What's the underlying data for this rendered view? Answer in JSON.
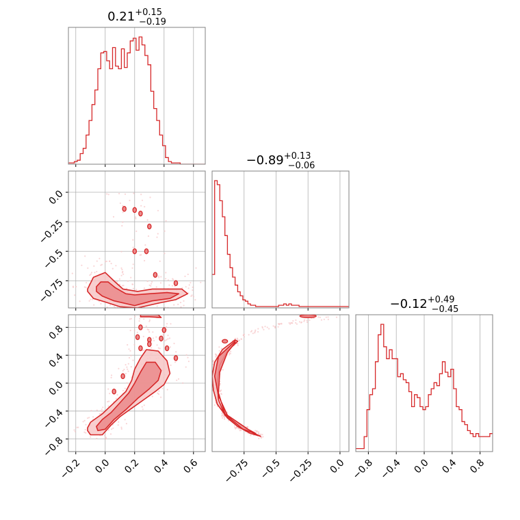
{
  "figure_type": "corner plot",
  "colors": {
    "main": "#d62728",
    "fill_light": "#f7c5c6",
    "fill_mid": "#eb8a8b",
    "grid": "#b0b0b0",
    "frame": "#808080"
  },
  "chart_data": [
    {
      "type": "histogram",
      "panel": "diag-0",
      "title": {
        "value": "0.21",
        "plus": "+0.15",
        "minus": "−0.19"
      },
      "xlim": [
        -0.25,
        0.68
      ],
      "xticks": [
        -0.2,
        0.0,
        0.2,
        0.4,
        0.6
      ],
      "bin_edges_start": -0.25,
      "bin_width": 0.02,
      "counts": [
        1,
        1,
        2,
        3,
        8,
        12,
        22,
        33,
        45,
        56,
        72,
        84,
        85,
        78,
        72,
        88,
        74,
        72,
        87,
        73,
        84,
        93,
        95,
        86,
        96,
        90,
        82,
        75,
        55,
        42,
        33,
        22,
        14,
        5,
        2,
        1,
        1,
        1,
        0,
        0,
        0,
        0,
        0,
        0,
        0,
        0,
        0,
        0,
        0,
        0
      ]
    },
    {
      "type": "histogram",
      "panel": "diag-1",
      "title": {
        "value": "−0.89",
        "plus": "+0.13",
        "minus": "−0.06"
      },
      "xlim": [
        -1.0,
        0.07
      ],
      "xticks": [
        -0.75,
        -0.5,
        -0.25,
        0.0
      ],
      "bin_edges_start": -1.0,
      "bin_width": 0.02,
      "counts": [
        25,
        95,
        92,
        80,
        68,
        54,
        40,
        30,
        23,
        17,
        12,
        9,
        6,
        5,
        3,
        2,
        2,
        1,
        1,
        1,
        1,
        1,
        1,
        1,
        1,
        1,
        2,
        2,
        3,
        2,
        3,
        2,
        2,
        2,
        1,
        1,
        1,
        1,
        1,
        1,
        1,
        1,
        1,
        1,
        1,
        1,
        1,
        1,
        1,
        1,
        1,
        1,
        1,
        1
      ]
    },
    {
      "type": "histogram",
      "panel": "diag-2",
      "title": {
        "value": "−0.12",
        "plus": "+0.49",
        "minus": "−0.45"
      },
      "xlim": [
        -0.98,
        0.98
      ],
      "xticks": [
        -0.8,
        -0.4,
        0.0,
        0.4,
        0.8
      ],
      "bin_edges_start": -0.98,
      "bin_width": 0.04,
      "counts": [
        2,
        2,
        2,
        10,
        28,
        38,
        42,
        60,
        78,
        85,
        70,
        62,
        68,
        62,
        62,
        50,
        52,
        48,
        46,
        40,
        30,
        38,
        36,
        30,
        28,
        30,
        38,
        42,
        46,
        44,
        52,
        60,
        53,
        50,
        55,
        42,
        30,
        28,
        20,
        18,
        14,
        12,
        10,
        12,
        10,
        10,
        10,
        10,
        12,
        12
      ]
    },
    {
      "type": "scatter-density",
      "panel": "2d-1-0",
      "xlim": [
        -0.25,
        0.68
      ],
      "ylim": [
        -0.98,
        0.18
      ],
      "yticks": [
        0.0,
        -0.25,
        -0.5,
        -0.75
      ],
      "contour_polylines": [
        [
          [
            -0.12,
            -0.82
          ],
          [
            -0.08,
            -0.72
          ],
          [
            0.0,
            -0.68
          ],
          [
            0.05,
            -0.74
          ],
          [
            0.12,
            -0.82
          ],
          [
            0.22,
            -0.84
          ],
          [
            0.32,
            -0.82
          ],
          [
            0.44,
            -0.82
          ],
          [
            0.52,
            -0.82
          ],
          [
            0.56,
            -0.86
          ],
          [
            0.48,
            -0.91
          ],
          [
            0.36,
            -0.94
          ],
          [
            0.22,
            -0.98
          ],
          [
            0.1,
            -0.97
          ],
          [
            0.0,
            -0.93
          ],
          [
            -0.08,
            -0.9
          ],
          [
            -0.12,
            -0.84
          ]
        ],
        [
          [
            -0.06,
            -0.8
          ],
          [
            -0.03,
            -0.76
          ],
          [
            0.02,
            -0.76
          ],
          [
            0.07,
            -0.81
          ],
          [
            0.14,
            -0.86
          ],
          [
            0.2,
            -0.87
          ],
          [
            0.3,
            -0.86
          ],
          [
            0.42,
            -0.85
          ],
          [
            0.5,
            -0.86
          ],
          [
            0.44,
            -0.9
          ],
          [
            0.32,
            -0.92
          ],
          [
            0.2,
            -0.96
          ],
          [
            0.06,
            -0.92
          ],
          [
            -0.02,
            -0.88
          ],
          [
            -0.06,
            -0.84
          ]
        ]
      ],
      "islands": [
        [
          0.13,
          -0.14
        ],
        [
          0.2,
          -0.15
        ],
        [
          0.24,
          -0.18
        ],
        [
          0.3,
          -0.29
        ],
        [
          0.2,
          -0.5
        ],
        [
          0.28,
          -0.5
        ],
        [
          0.34,
          -0.7
        ],
        [
          0.48,
          -0.77
        ]
      ]
    },
    {
      "type": "scatter-density",
      "panel": "2d-2-0",
      "xlim": [
        -0.25,
        0.68
      ],
      "ylim": [
        -0.98,
        0.98
      ],
      "xticks": [
        -0.2,
        0.0,
        0.2,
        0.4,
        0.6
      ],
      "yticks": [
        0.8,
        0.4,
        0.0,
        -0.4,
        -0.8
      ],
      "contour_polylines": [
        [
          [
            -0.12,
            -0.64
          ],
          [
            -0.1,
            -0.56
          ],
          [
            -0.02,
            -0.44
          ],
          [
            0.04,
            -0.32
          ],
          [
            0.1,
            -0.2
          ],
          [
            0.14,
            -0.12
          ],
          [
            0.18,
            0.04
          ],
          [
            0.2,
            0.2
          ],
          [
            0.24,
            0.36
          ],
          [
            0.28,
            0.48
          ],
          [
            0.36,
            0.46
          ],
          [
            0.42,
            0.32
          ],
          [
            0.44,
            0.14
          ],
          [
            0.4,
            -0.02
          ],
          [
            0.34,
            -0.12
          ],
          [
            0.26,
            -0.24
          ],
          [
            0.18,
            -0.36
          ],
          [
            0.1,
            -0.48
          ],
          [
            0.04,
            -0.6
          ],
          [
            -0.02,
            -0.74
          ],
          [
            -0.1,
            -0.74
          ],
          [
            -0.12,
            -0.68
          ]
        ],
        [
          [
            -0.06,
            -0.62
          ],
          [
            -0.02,
            -0.52
          ],
          [
            0.04,
            -0.42
          ],
          [
            0.1,
            -0.28
          ],
          [
            0.16,
            -0.14
          ],
          [
            0.2,
            0.0
          ],
          [
            0.24,
            0.16
          ],
          [
            0.28,
            0.3
          ],
          [
            0.34,
            0.3
          ],
          [
            0.38,
            0.18
          ],
          [
            0.36,
            0.04
          ],
          [
            0.3,
            -0.08
          ],
          [
            0.22,
            -0.22
          ],
          [
            0.14,
            -0.38
          ],
          [
            0.06,
            -0.52
          ],
          [
            0.0,
            -0.66
          ],
          [
            -0.05,
            -0.68
          ]
        ],
        [
          [
            0.24,
            0.95
          ],
          [
            0.3,
            0.95
          ],
          [
            0.38,
            0.94
          ],
          [
            0.36,
            0.98
          ],
          [
            0.24,
            0.99
          ]
        ]
      ],
      "islands": [
        [
          0.22,
          0.66
        ],
        [
          0.3,
          0.62
        ],
        [
          0.38,
          0.64
        ],
        [
          0.4,
          0.76
        ],
        [
          0.24,
          0.8
        ],
        [
          0.42,
          0.5
        ],
        [
          0.48,
          0.36
        ],
        [
          0.12,
          0.1
        ],
        [
          0.06,
          -0.12
        ],
        [
          0.3,
          0.56
        ],
        [
          0.24,
          0.5
        ]
      ]
    },
    {
      "type": "scatter-density",
      "panel": "2d-2-1",
      "xlim": [
        -1.0,
        0.07
      ],
      "ylim": [
        -0.98,
        0.98
      ],
      "xticks": [
        -0.75,
        -0.5,
        -0.25,
        0.0
      ],
      "contour_polylines": [
        [
          [
            -0.82,
            0.62
          ],
          [
            -0.92,
            0.48
          ],
          [
            -0.98,
            0.3
          ],
          [
            -1.0,
            0.1
          ],
          [
            -0.99,
            -0.1
          ],
          [
            -0.96,
            -0.3
          ],
          [
            -0.88,
            -0.5
          ],
          [
            -0.8,
            -0.62
          ],
          [
            -0.7,
            -0.72
          ],
          [
            -0.62,
            -0.76
          ],
          [
            -0.67,
            -0.72
          ],
          [
            -0.8,
            -0.62
          ],
          [
            -0.9,
            -0.46
          ],
          [
            -0.95,
            -0.24
          ],
          [
            -0.96,
            0.0
          ],
          [
            -0.94,
            0.26
          ],
          [
            -0.88,
            0.46
          ],
          [
            -0.8,
            0.6
          ]
        ],
        [
          [
            -0.82,
            0.6
          ],
          [
            -0.95,
            0.38
          ],
          [
            -0.98,
            0.1
          ],
          [
            -0.95,
            -0.18
          ],
          [
            -0.88,
            -0.46
          ],
          [
            -0.72,
            -0.66
          ],
          [
            -0.66,
            -0.72
          ],
          [
            -0.76,
            -0.66
          ],
          [
            -0.9,
            -0.44
          ],
          [
            -0.95,
            -0.14
          ],
          [
            -0.94,
            0.16
          ],
          [
            -0.88,
            0.44
          ],
          [
            -0.82,
            0.58
          ]
        ]
      ],
      "arc_center": [
        0.4,
        0.0
      ]
    }
  ]
}
